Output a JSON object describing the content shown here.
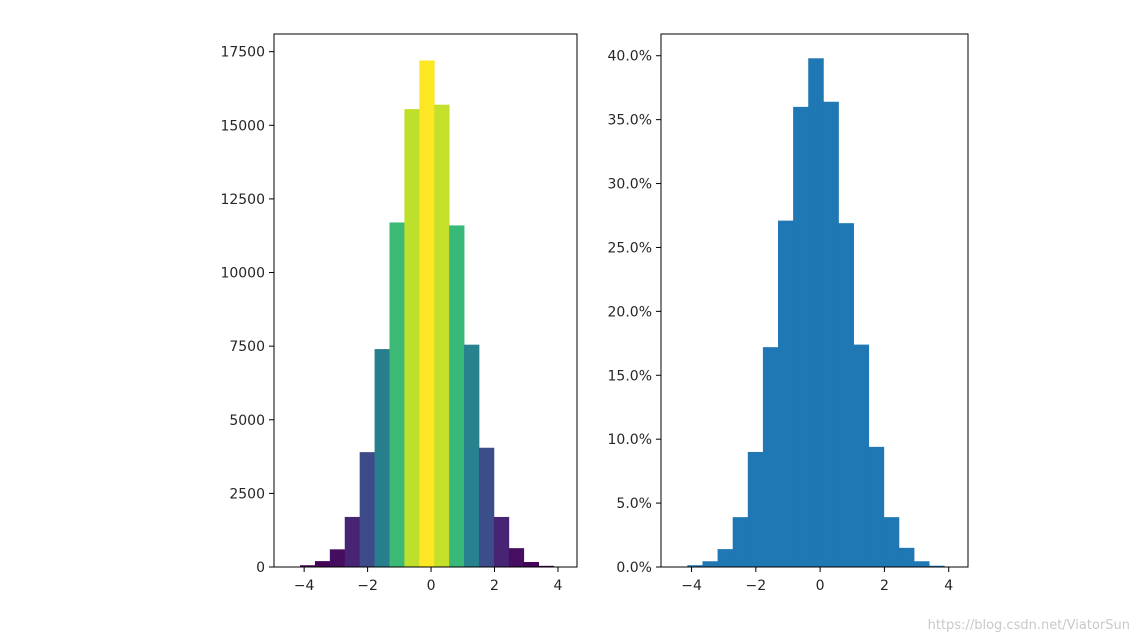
{
  "chart_data": [
    {
      "type": "bar",
      "title": "",
      "xlabel": "",
      "ylabel": "",
      "bin_edges": [
        -4.6,
        -4.13,
        -3.66,
        -3.19,
        -2.72,
        -2.25,
        -1.78,
        -1.31,
        -0.84,
        -0.37,
        0.1,
        0.57,
        1.04,
        1.51,
        1.98,
        2.45,
        2.92,
        3.39,
        3.86
      ],
      "values": [
        15,
        60,
        200,
        600,
        1700,
        3900,
        7400,
        11700,
        15550,
        17200,
        15700,
        11600,
        7550,
        4050,
        1700,
        640,
        170,
        40
      ],
      "xlim": [
        -4.95,
        4.6
      ],
      "ylim": [
        0,
        18100
      ],
      "x_ticks": [
        -4,
        -2,
        0,
        2,
        4
      ],
      "x_tick_labels": [
        "−4",
        "−2",
        "0",
        "2",
        "4"
      ],
      "y_ticks": [
        0,
        2500,
        5000,
        7500,
        10000,
        12500,
        15000,
        17500
      ],
      "y_tick_labels": [
        "0",
        "2500",
        "5000",
        "7500",
        "10000",
        "12500",
        "15000",
        "17500"
      ],
      "colormap": "viridis",
      "grid": false
    },
    {
      "type": "bar",
      "title": "",
      "xlabel": "",
      "ylabel": "",
      "bin_edges": [
        -4.6,
        -4.13,
        -3.66,
        -3.19,
        -2.72,
        -2.25,
        -1.78,
        -1.31,
        -0.84,
        -0.37,
        0.1,
        0.57,
        1.04,
        1.51,
        1.98,
        2.45,
        2.92,
        3.39,
        3.86
      ],
      "values": [
        0.03,
        0.14,
        0.45,
        1.4,
        3.9,
        9.0,
        17.2,
        27.1,
        36.0,
        39.8,
        36.4,
        26.9,
        17.4,
        9.4,
        3.9,
        1.5,
        0.45,
        0.1
      ],
      "xlim": [
        -4.95,
        4.6
      ],
      "ylim": [
        0,
        41.7
      ],
      "x_ticks": [
        -4,
        -2,
        0,
        2,
        4
      ],
      "x_tick_labels": [
        "−4",
        "−2",
        "0",
        "2",
        "4"
      ],
      "y_ticks": [
        0,
        5,
        10,
        15,
        20,
        25,
        30,
        35,
        40
      ],
      "y_tick_labels": [
        "0.0%",
        "5.0%",
        "10.0%",
        "15.0%",
        "20.0%",
        "25.0%",
        "30.0%",
        "35.0%",
        "40.0%"
      ],
      "bar_color": "#1f77b4",
      "grid": false
    }
  ],
  "watermark": "https://blog.csdn.net/ViatorSun"
}
